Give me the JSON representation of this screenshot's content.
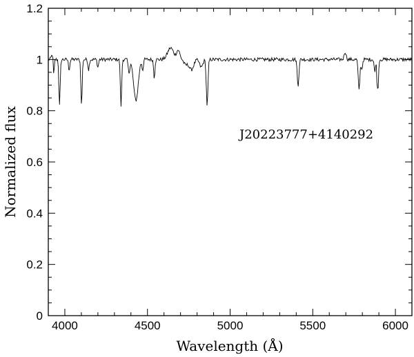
{
  "chart_data": {
    "type": "line",
    "title": "",
    "xlabel": "Wavelength (Å)",
    "ylabel": "Normalized flux",
    "xlim": [
      3900,
      6100
    ],
    "ylim": [
      0,
      1.2
    ],
    "x_ticks": [
      4000,
      4500,
      5000,
      5500,
      6000
    ],
    "x_tick_labels": [
      "4000",
      "4500",
      "5000",
      "5500",
      "6000"
    ],
    "y_ticks": [
      0,
      0.2,
      0.4,
      0.6,
      0.8,
      1,
      1.2
    ],
    "y_tick_labels": [
      "0",
      "0.2",
      "0.4",
      "0.6",
      "0.8",
      "1",
      "1.2"
    ],
    "grid": false,
    "annotation": "J20223777+4140292",
    "series": [
      {
        "continuum": 1.0,
        "x_start": 3900,
        "x_end": 6100,
        "sampling_A": 4,
        "features": [
          {
            "center": 3925,
            "depth": -0.02,
            "width": 6
          },
          {
            "center": 3933,
            "depth": 0.07,
            "width": 3
          },
          {
            "center": 3968,
            "depth": 0.18,
            "width": 4
          },
          {
            "center": 4026,
            "depth": 0.04,
            "width": 4
          },
          {
            "center": 4101,
            "depth": 0.18,
            "width": 4
          },
          {
            "center": 4144,
            "depth": 0.04,
            "width": 4
          },
          {
            "center": 4200,
            "depth": 0.03,
            "width": 4
          },
          {
            "center": 4340,
            "depth": 0.18,
            "width": 4
          },
          {
            "center": 4388,
            "depth": 0.05,
            "width": 5
          },
          {
            "center": 4430,
            "depth": 0.16,
            "width": 14
          },
          {
            "center": 4471,
            "depth": 0.04,
            "width": 4
          },
          {
            "center": 4541,
            "depth": 0.07,
            "width": 4
          },
          {
            "center": 4640,
            "depth": -0.045,
            "width": 18
          },
          {
            "center": 4686,
            "depth": -0.035,
            "width": 10
          },
          {
            "center": 4730,
            "depth": 0.02,
            "width": 10
          },
          {
            "center": 4765,
            "depth": 0.04,
            "width": 14
          },
          {
            "center": 4861,
            "depth": 0.18,
            "width": 5
          },
          {
            "center": 4825,
            "depth": 0.03,
            "width": 10
          },
          {
            "center": 5411,
            "depth": 0.1,
            "width": 5
          },
          {
            "center": 5696,
            "depth": -0.03,
            "width": 6
          },
          {
            "center": 5780,
            "depth": 0.12,
            "width": 5
          },
          {
            "center": 5797,
            "depth": 0.04,
            "width": 4
          },
          {
            "center": 5876,
            "depth": 0.05,
            "width": 4
          },
          {
            "center": 5890,
            "depth": 0.1,
            "width": 3
          },
          {
            "center": 5896,
            "depth": 0.09,
            "width": 3
          }
        ],
        "noise_amplitude": 0.007
      }
    ]
  }
}
